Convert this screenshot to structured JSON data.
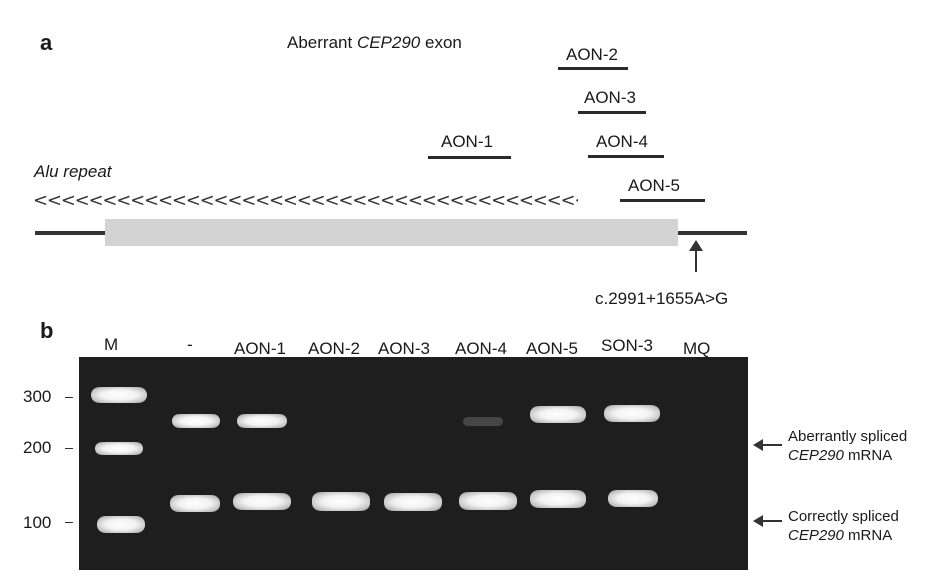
{
  "panel_a": {
    "label": "a",
    "exon_title_prefix": "Aberrant ",
    "exon_title_gene": "CEP290",
    "exon_title_suffix": " exon",
    "alu_label": "Alu repeat",
    "alu_chevrons": "<<<<<<<<<<<<<<<<<<<<<<<<<<<<<<<<<<<<<<<<<<<<<<<<<<<",
    "aons": [
      "AON-1",
      "AON-2",
      "AON-3",
      "AON-4",
      "AON-5"
    ],
    "mutation": "c.2991+1655A>G"
  },
  "panel_b": {
    "label": "b",
    "lanes": [
      "M",
      "-",
      "AON-1",
      "AON-2",
      "AON-3",
      "AON-4",
      "AON-5",
      "SON-3",
      "MQ"
    ],
    "size_markers": [
      "300",
      "200",
      "100"
    ],
    "annotations": [
      {
        "line1": "Aberrantly spliced",
        "gene": "CEP290",
        "suffix": " mRNA"
      },
      {
        "line1": "Correctly spliced",
        "gene": "CEP290",
        "suffix": " mRNA"
      }
    ]
  }
}
